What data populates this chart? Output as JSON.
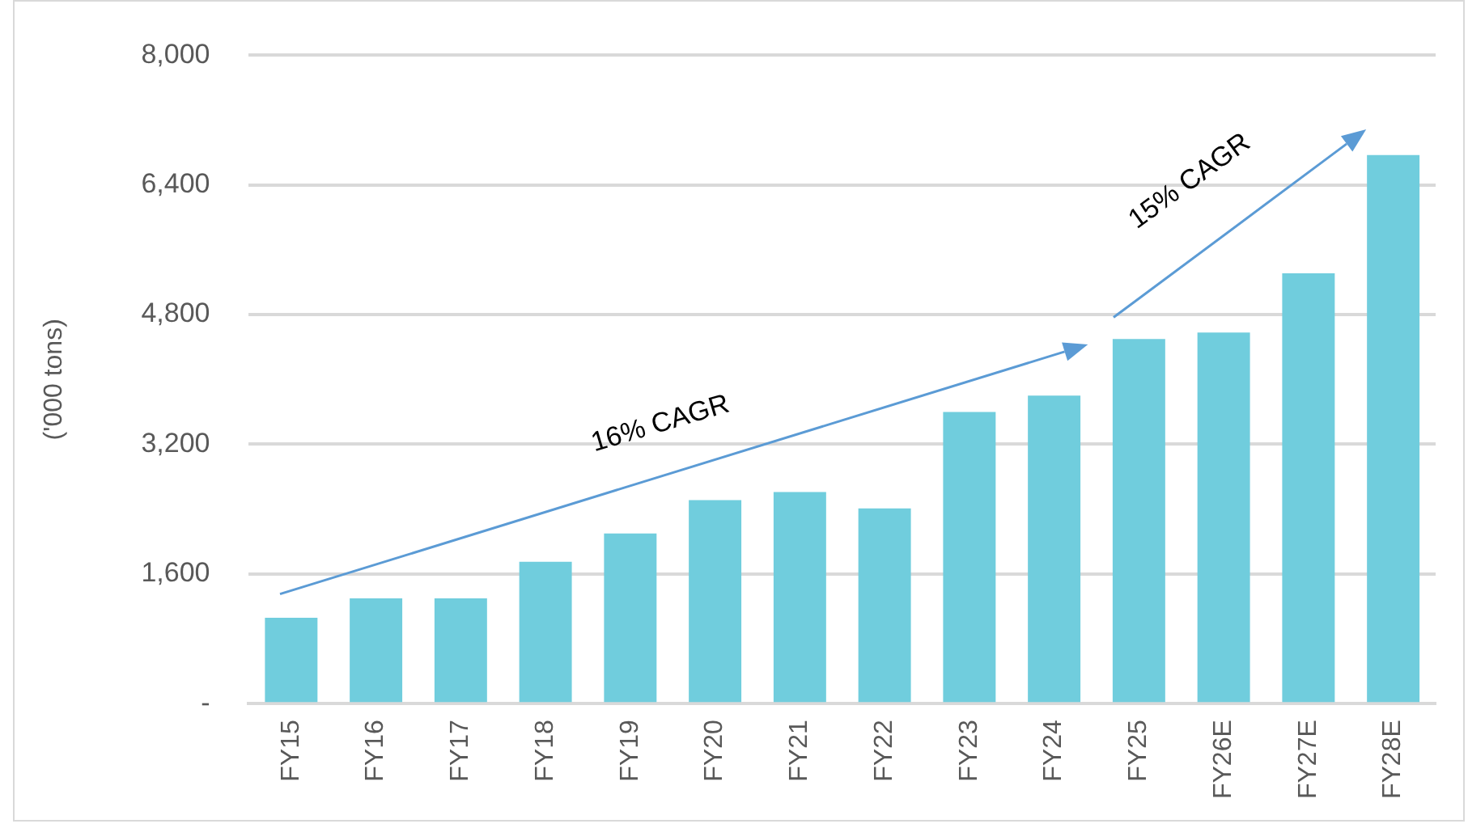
{
  "chart_data": {
    "type": "bar",
    "ylabel": "('000 tons)",
    "categories": [
      "FY15",
      "FY16",
      "FY17",
      "FY18",
      "FY19",
      "FY20",
      "FY21",
      "FY22",
      "FY23",
      "FY24",
      "FY25",
      "FY26E",
      "FY27E",
      "FY28E"
    ],
    "values": [
      1060,
      1300,
      1300,
      1750,
      2100,
      2510,
      2610,
      2410,
      3600,
      3800,
      4500,
      4580,
      5310,
      6770
    ],
    "color": "#70cddd",
    "ylim": [
      0,
      8000
    ],
    "yticks": [
      {
        "value": 0,
        "label": "-"
      },
      {
        "value": 1600,
        "label": "1,600"
      },
      {
        "value": 3200,
        "label": "3,200"
      },
      {
        "value": 4800,
        "label": "4,800"
      },
      {
        "value": 6400,
        "label": "6,400"
      },
      {
        "value": 8000,
        "label": "8,000"
      }
    ],
    "grid": "y",
    "legend": false,
    "annotations": [
      "16% CAGR",
      "15% CAGR"
    ]
  }
}
